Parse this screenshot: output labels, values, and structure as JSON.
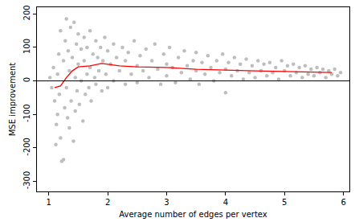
{
  "chart_data": {
    "type": "scatter",
    "x_label": "Average number of edges per vertex",
    "y_label": "MSE improvement",
    "xlim": [
      0.8,
      6.1
    ],
    "ylim": [
      -330,
      220
    ],
    "xticks": [
      1,
      2,
      3,
      4,
      5,
      6
    ],
    "yticks": [
      -300,
      -200,
      -100,
      0,
      100,
      200
    ],
    "grid": false,
    "reference_line": 0,
    "series": [
      {
        "type": "scatter",
        "marker": "circle",
        "color": "#bebebe",
        "x": [
          1.02,
          1.05,
          1.08,
          1.1,
          1.12,
          1.13,
          1.15,
          1.15,
          1.17,
          1.18,
          1.2,
          1.2,
          1.22,
          1.25,
          1.25,
          1.27,
          1.28,
          1.3,
          1.3,
          1.32,
          1.33,
          1.35,
          1.35,
          1.37,
          1.38,
          1.4,
          1.42,
          1.43,
          1.45,
          1.45,
          1.47,
          1.48,
          1.5,
          1.5,
          1.52,
          1.55,
          1.55,
          1.58,
          1.6,
          1.6,
          1.62,
          1.65,
          1.65,
          1.68,
          1.7,
          1.7,
          1.72,
          1.75,
          1.78,
          1.8,
          1.8,
          1.83,
          1.85,
          1.88,
          1.9,
          1.92,
          1.95,
          1.97,
          2.0,
          2.0,
          2.05,
          2.1,
          2.1,
          2.15,
          2.2,
          2.25,
          2.3,
          2.3,
          2.35,
          2.4,
          2.45,
          2.5,
          2.5,
          2.55,
          2.6,
          2.65,
          2.7,
          2.75,
          2.8,
          2.85,
          2.9,
          2.95,
          3.0,
          3.0,
          3.05,
          3.1,
          3.15,
          3.2,
          3.25,
          3.3,
          3.35,
          3.4,
          3.45,
          3.5,
          3.5,
          3.55,
          3.6,
          3.65,
          3.7,
          3.75,
          3.8,
          3.85,
          3.9,
          3.95,
          4.0,
          4.0,
          4.05,
          4.1,
          4.15,
          4.2,
          4.25,
          4.3,
          4.35,
          4.4,
          4.45,
          4.5,
          4.55,
          4.6,
          4.65,
          4.7,
          4.75,
          4.8,
          4.85,
          4.9,
          4.95,
          5.0,
          5.05,
          5.1,
          5.15,
          5.2,
          5.25,
          5.3,
          5.35,
          5.4,
          5.45,
          5.5,
          5.55,
          5.6,
          5.65,
          5.7,
          5.75,
          5.8,
          5.85,
          5.9,
          5.95
        ],
        "values": [
          10,
          -20,
          40,
          -60,
          -190,
          -130,
          20,
          -100,
          80,
          -40,
          150,
          -170,
          -240,
          -235,
          60,
          -80,
          120,
          -20,
          185,
          -110,
          90,
          30,
          -140,
          160,
          -60,
          70,
          -180,
          175,
          10,
          -90,
          110,
          -30,
          140,
          50,
          -70,
          95,
          0,
          -120,
          130,
          60,
          -40,
          20,
          100,
          -20,
          150,
          40,
          -60,
          80,
          10,
          120,
          -10,
          70,
          30,
          100,
          -30,
          60,
          130,
          20,
          90,
          -20,
          50,
          110,
          0,
          70,
          30,
          100,
          -10,
          60,
          85,
          20,
          120,
          45,
          -5,
          75,
          30,
          95,
          10,
          60,
          110,
          35,
          -10,
          80,
          50,
          15,
          100,
          40,
          -5,
          70,
          25,
          90,
          45,
          5,
          60,
          30,
          85,
          -10,
          55,
          20,
          75,
          40,
          0,
          60,
          25,
          80,
          35,
          -35,
          55,
          15,
          70,
          30,
          50,
          5,
          65,
          25,
          45,
          10,
          60,
          30,
          50,
          15,
          55,
          25,
          40,
          5,
          60,
          30,
          45,
          15,
          50,
          25,
          40,
          10,
          45,
          20,
          35,
          15,
          40,
          25,
          35,
          10,
          30,
          20,
          35,
          15,
          25
        ]
      },
      {
        "type": "line",
        "line_style": "solid",
        "color": "#ff0000",
        "x": [
          1.1,
          1.2,
          1.3,
          1.4,
          1.5,
          1.7,
          1.9,
          2.0,
          2.2,
          2.5,
          3.0,
          3.5,
          4.0,
          4.5,
          5.0,
          5.5,
          5.8
        ],
        "values": [
          -20,
          -15,
          10,
          30,
          42,
          45,
          52,
          50,
          45,
          42,
          40,
          35,
          32,
          30,
          28,
          27,
          25
        ]
      }
    ]
  }
}
